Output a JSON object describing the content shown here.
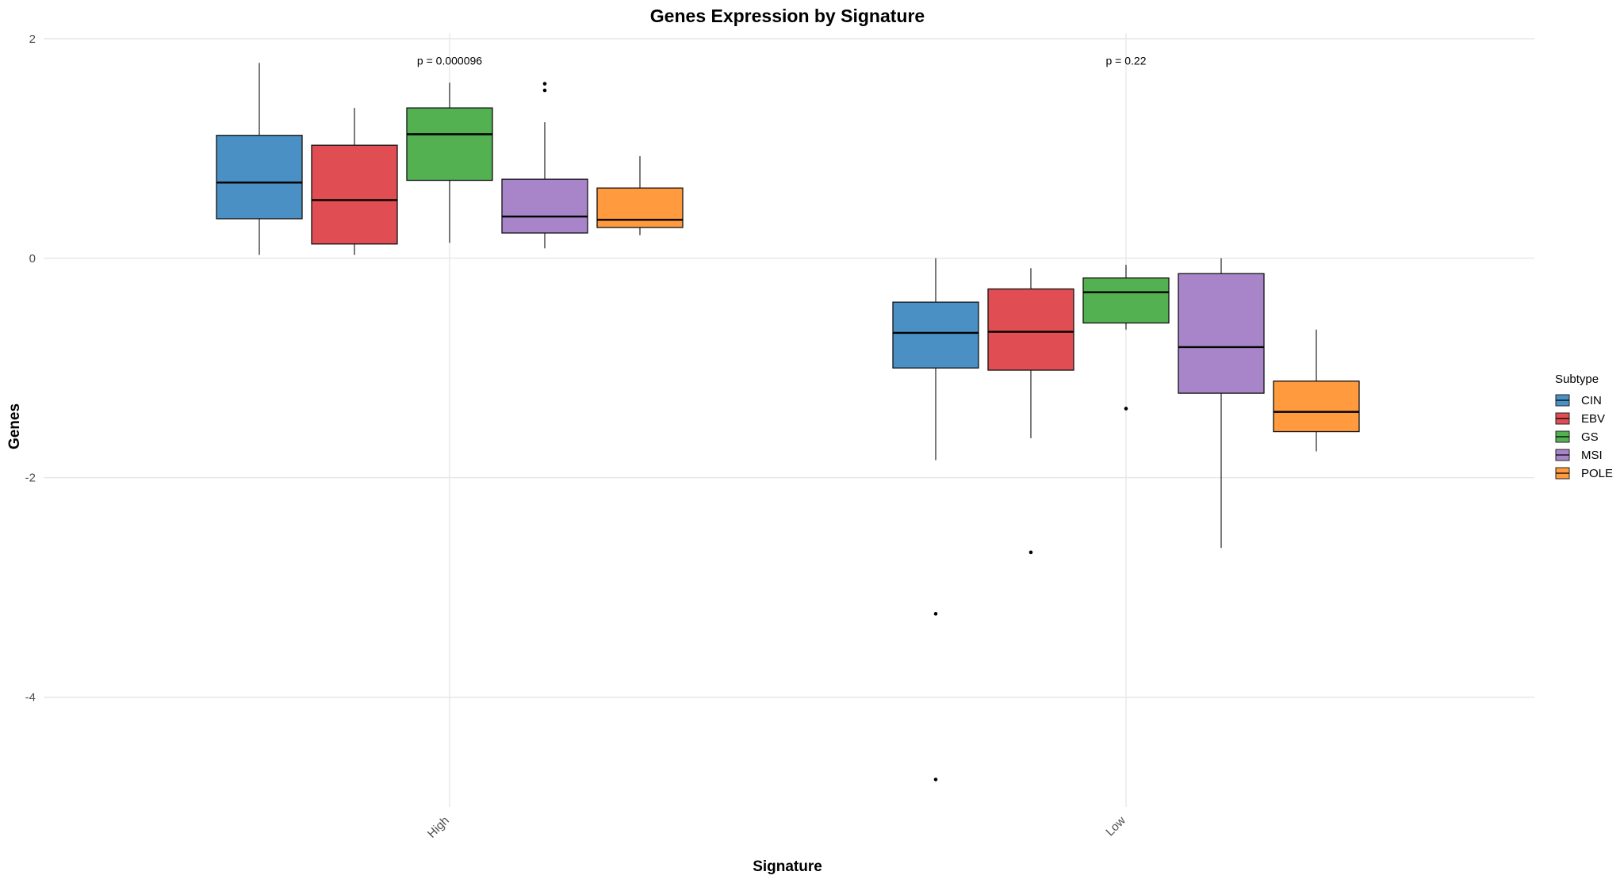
{
  "chart_data": {
    "type": "boxplot",
    "title": "Genes Expression by Signature",
    "xlabel": "Signature",
    "ylabel": "Genes",
    "ylim": [
      -5.0,
      2.05
    ],
    "yticks": [
      2,
      0,
      -2,
      -4
    ],
    "ytick_labels": [
      "2",
      "0",
      "-2",
      "-4"
    ],
    "categories": [
      "High",
      "Low"
    ],
    "grid": true,
    "legend": {
      "title": "Subtype",
      "position": "right",
      "items": [
        {
          "name": "CIN",
          "color": "#4a90c4"
        },
        {
          "name": "EBV",
          "color": "#e04e54"
        },
        {
          "name": "GS",
          "color": "#53b152"
        },
        {
          "name": "MSI",
          "color": "#a884c9"
        },
        {
          "name": "POLE",
          "color": "#ff9a3e"
        }
      ]
    },
    "annotations": [
      {
        "category": "High",
        "text": "p = 0.000096",
        "y": 1.8
      },
      {
        "category": "Low",
        "text": "p = 0.22",
        "y": 1.8
      }
    ],
    "series": [
      {
        "name": "CIN",
        "color": "#4a90c4",
        "boxes": [
          {
            "category": "High",
            "min": 0.03,
            "q1": 0.36,
            "median": 0.69,
            "q3": 1.12,
            "max": 1.78,
            "outliers": []
          },
          {
            "category": "Low",
            "min": -1.84,
            "q1": -1.0,
            "median": -0.68,
            "q3": -0.4,
            "max": 0.0,
            "outliers": [
              -3.24,
              -4.75
            ]
          }
        ]
      },
      {
        "name": "EBV",
        "color": "#e04e54",
        "boxes": [
          {
            "category": "High",
            "min": 0.03,
            "q1": 0.13,
            "median": 0.53,
            "q3": 1.03,
            "max": 1.37,
            "outliers": []
          },
          {
            "category": "Low",
            "min": -1.64,
            "q1": -1.02,
            "median": -0.67,
            "q3": -0.28,
            "max": -0.09,
            "outliers": [
              -2.68
            ]
          }
        ]
      },
      {
        "name": "GS",
        "color": "#53b152",
        "boxes": [
          {
            "category": "High",
            "min": 0.14,
            "q1": 0.71,
            "median": 1.13,
            "q3": 1.37,
            "max": 1.6,
            "outliers": []
          },
          {
            "category": "Low",
            "min": -0.65,
            "q1": -0.59,
            "median": -0.31,
            "q3": -0.18,
            "max": -0.06,
            "outliers": [
              -1.37
            ]
          }
        ]
      },
      {
        "name": "MSI",
        "color": "#a884c9",
        "boxes": [
          {
            "category": "High",
            "min": 0.09,
            "q1": 0.23,
            "median": 0.38,
            "q3": 0.72,
            "max": 1.24,
            "outliers": [
              1.53,
              1.59
            ]
          },
          {
            "category": "Low",
            "min": -2.64,
            "q1": -1.23,
            "median": -0.81,
            "q3": -0.14,
            "max": 0.0,
            "outliers": []
          }
        ]
      },
      {
        "name": "POLE",
        "color": "#ff9a3e",
        "boxes": [
          {
            "category": "High",
            "min": 0.21,
            "q1": 0.28,
            "median": 0.35,
            "q3": 0.64,
            "max": 0.93,
            "outliers": []
          },
          {
            "category": "Low",
            "min": -1.76,
            "q1": -1.58,
            "median": -1.4,
            "q3": -1.12,
            "max": -0.65,
            "outliers": []
          }
        ]
      }
    ]
  }
}
